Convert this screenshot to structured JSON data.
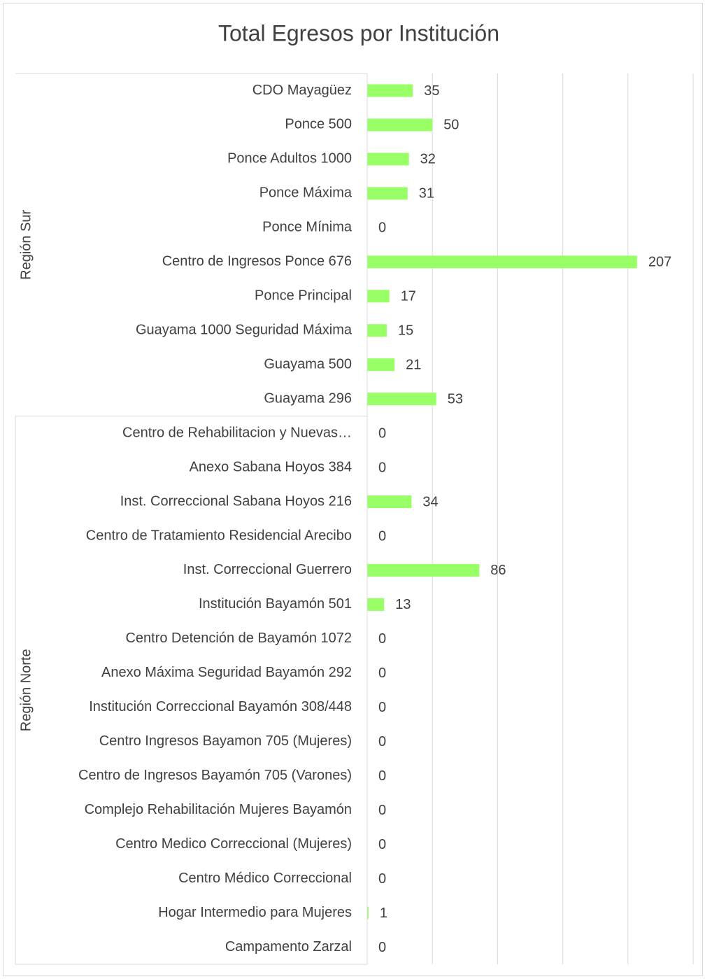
{
  "chart_data": {
    "type": "bar",
    "orientation": "horizontal",
    "title": "Total Egresos por Institución",
    "color": "#99ff66",
    "xlim": [
      0,
      250
    ],
    "xticks": [
      0,
      50,
      100,
      150,
      200,
      250
    ],
    "grid": true,
    "groups": [
      {
        "name": "Región Sur",
        "categories": [
          "CDO Mayagüez",
          "Ponce 500",
          "Ponce Adultos 1000",
          "Ponce Máxima",
          "Ponce Mínima",
          "Centro de Ingresos Ponce 676",
          "Ponce Principal",
          "Guayama 1000 Seguridad Máxima",
          "Guayama 500",
          "Guayama 296"
        ],
        "values": [
          35,
          50,
          32,
          31,
          0,
          207,
          17,
          15,
          21,
          53
        ]
      },
      {
        "name": "Región Norte",
        "categories": [
          "Centro de Rehabilitacion y Nuevas…",
          "Anexo Sabana Hoyos 384",
          "Inst. Correccional Sabana Hoyos  216",
          "Centro de Tratamiento Residencial Arecibo",
          "Inst. Correccional Guerrero",
          "Institución Bayamón 501",
          "Centro Detención de Bayamón 1072",
          "Anexo Máxima Seguridad Bayamón 292",
          "Institución Correccional Bayamón 308/448",
          "Centro Ingresos Bayamon 705 (Mujeres)",
          "Centro de Ingresos Bayamón 705  (Varones)",
          "Complejo Rehabilitación Mujeres Bayamón",
          "Centro Medico Correccional (Mujeres)",
          "Centro Médico Correccional",
          "Hogar Intermedio para Mujeres",
          "Campamento Zarzal"
        ],
        "values": [
          0,
          0,
          34,
          0,
          86,
          13,
          0,
          0,
          0,
          0,
          0,
          0,
          0,
          0,
          1,
          0
        ]
      }
    ]
  }
}
